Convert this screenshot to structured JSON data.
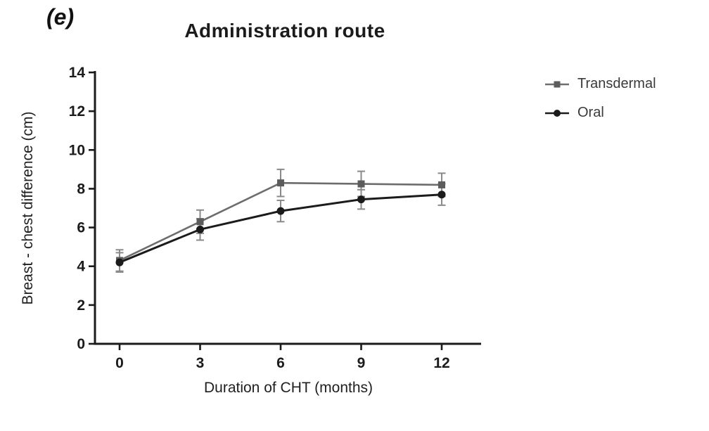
{
  "panel_label": "(e)",
  "chart_data": {
    "type": "line",
    "title": "Administration route",
    "xlabel": "Duration of CHT (months)",
    "ylabel": "Breast - chest difference (cm)",
    "x": [
      0,
      3,
      6,
      9,
      12
    ],
    "xlim": [
      0,
      12
    ],
    "ylim": [
      0,
      14
    ],
    "ytick_step": 2,
    "xtick_labels": [
      "0",
      "3",
      "6",
      "9",
      "12"
    ],
    "grid": false,
    "legend_position": "right",
    "axis_color": "#1b1b1b",
    "error_bar_color": "#8a8a8a",
    "series": [
      {
        "name": "Transdermal",
        "marker": "square",
        "color": "#6d6d6d",
        "marker_color": "#5c5c5c",
        "values": [
          4.3,
          6.3,
          8.3,
          8.25,
          8.2
        ],
        "errors": [
          0.55,
          0.6,
          0.7,
          0.65,
          0.6
        ]
      },
      {
        "name": "Oral",
        "marker": "circle",
        "color": "#1b1b1b",
        "marker_color": "#1b1b1b",
        "values": [
          4.2,
          5.9,
          6.85,
          7.45,
          7.7
        ],
        "errors": [
          0.5,
          0.55,
          0.55,
          0.5,
          0.55
        ]
      }
    ]
  }
}
